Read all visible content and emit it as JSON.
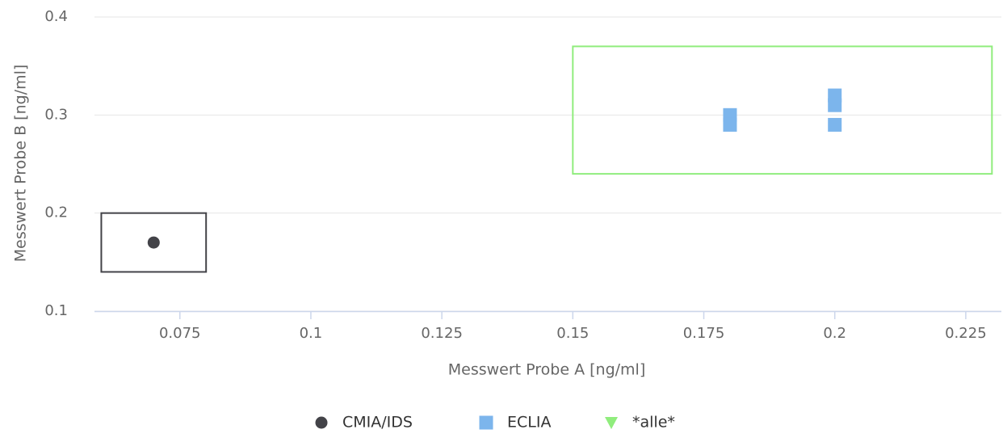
{
  "chart_data": {
    "type": "scatter",
    "x_label": "Messwert Probe A [ng/ml]",
    "y_label": "Messwert Probe B [ng/ml]",
    "xlim": [
      0.0587,
      0.2318
    ],
    "xticks": [
      0.075,
      0.1,
      0.125,
      0.15,
      0.175,
      0.2,
      0.225
    ],
    "ylim": [
      0.1,
      0.4
    ],
    "yticks": [
      0.1,
      0.2,
      0.3,
      0.4
    ],
    "grid": true,
    "legend": "bottom",
    "series": [
      {
        "name": "CMIA/IDS",
        "color": "#434348",
        "marker": "circle",
        "x": [
          0.07
        ],
        "values": [
          0.17
        ],
        "region": {
          "color": "#434348",
          "xlim": [
            0.06,
            0.08
          ],
          "ylim": [
            0.14,
            0.2
          ]
        }
      },
      {
        "name": "ECLIA",
        "color": "#7cb5ec",
        "marker": "square",
        "x": [
          0.18,
          0.18,
          0.2,
          0.2,
          0.2
        ],
        "values": [
          0.3,
          0.29,
          0.32,
          0.31,
          0.29
        ]
      },
      {
        "name": "*alle*",
        "color": "#90ed7d",
        "marker": "triangle",
        "x": [],
        "values": [],
        "region": {
          "color": "#90ed7d",
          "xlim": [
            0.15,
            0.23
          ],
          "ylim": [
            0.24,
            0.37
          ]
        }
      }
    ]
  }
}
